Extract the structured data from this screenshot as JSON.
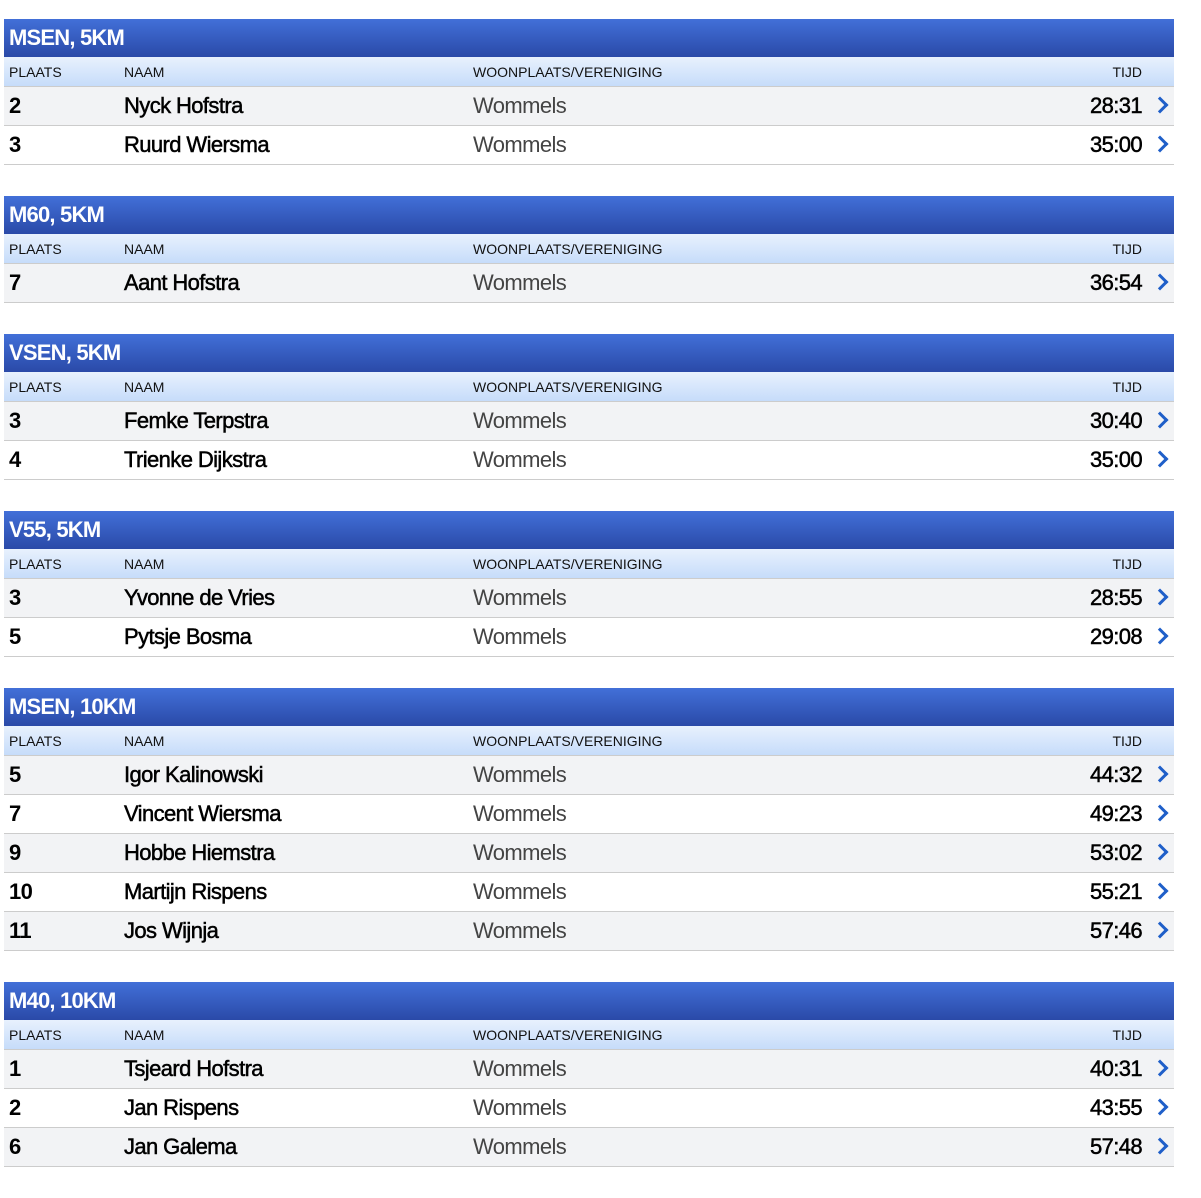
{
  "columns": {
    "plaats": "PLAATS",
    "naam": "NAAM",
    "woonplaats": "WOONPLAATS/VERENIGING",
    "tijd": "TIJD"
  },
  "colors": {
    "header_blue": "#2f52b4",
    "chevron": "#1f5fc9"
  },
  "sections": [
    {
      "title": "MSEN, 5KM",
      "rows": [
        [
          "2",
          "Nyck Hofstra",
          "Wommels",
          "28:31"
        ],
        [
          "3",
          "Ruurd Wiersma",
          "Wommels",
          "35:00"
        ]
      ]
    },
    {
      "title": "M60, 5KM",
      "rows": [
        [
          "7",
          "Aant Hofstra",
          "Wommels",
          "36:54"
        ]
      ]
    },
    {
      "title": "VSEN, 5KM",
      "rows": [
        [
          "3",
          "Femke Terpstra",
          "Wommels",
          "30:40"
        ],
        [
          "4",
          "Trienke Dijkstra",
          "Wommels",
          "35:00"
        ]
      ]
    },
    {
      "title": "V55, 5KM",
      "rows": [
        [
          "3",
          "Yvonne de Vries",
          "Wommels",
          "28:55"
        ],
        [
          "5",
          "Pytsje Bosma",
          "Wommels",
          "29:08"
        ]
      ]
    },
    {
      "title": "MSEN, 10KM",
      "rows": [
        [
          "5",
          "Igor Kalinowski",
          "Wommels",
          "44:32"
        ],
        [
          "7",
          "Vincent Wiersma",
          "Wommels",
          "49:23"
        ],
        [
          "9",
          "Hobbe Hiemstra",
          "Wommels",
          "53:02"
        ],
        [
          "10",
          "Martijn Rispens",
          "Wommels",
          "55:21"
        ],
        [
          "11",
          "Jos Wijnja",
          "Wommels",
          "57:46"
        ]
      ]
    },
    {
      "title": "M40, 10KM",
      "rows": [
        [
          "1",
          "Tsjeard Hofstra",
          "Wommels",
          "40:31"
        ],
        [
          "2",
          "Jan Rispens",
          "Wommels",
          "43:55"
        ],
        [
          "6",
          "Jan Galema",
          "Wommels",
          "57:48"
        ]
      ]
    }
  ]
}
